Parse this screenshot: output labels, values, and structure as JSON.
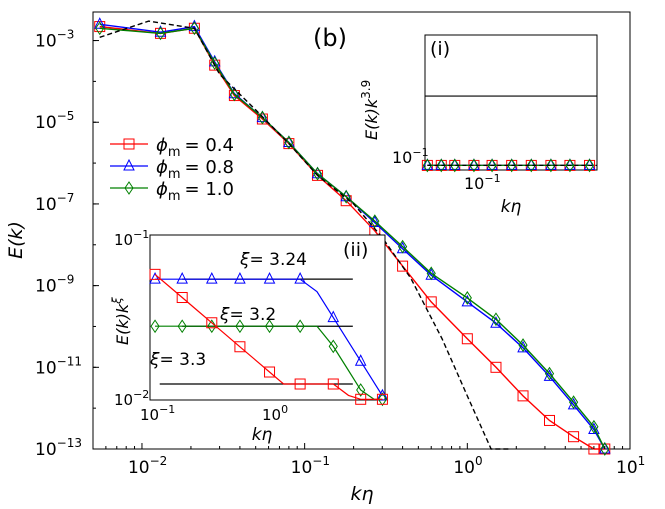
{
  "colors": {
    "phi04": "#ff0000",
    "phi08": "#0000ff",
    "phi10": "#008000",
    "reference": "#000000"
  },
  "chart_data": {
    "type": "line",
    "scale": "log-log",
    "panel_label": "(b)",
    "xlabel": "kη",
    "ylabel": "E(k)",
    "xlim": [
      0.005,
      10
    ],
    "ylim": [
      1e-13,
      0.005
    ],
    "x_ticks": [
      {
        "value": 0.01,
        "base": "10",
        "exp": "−2"
      },
      {
        "value": 0.1,
        "base": "10",
        "exp": "−1"
      },
      {
        "value": 1,
        "base": "10",
        "exp": "0"
      },
      {
        "value": 10,
        "base": "10",
        "exp": "1"
      }
    ],
    "y_ticks": [
      {
        "value": 0.001,
        "base": "10",
        "exp": "−3"
      },
      {
        "value": 1e-05,
        "base": "10",
        "exp": "−5"
      },
      {
        "value": 1e-07,
        "base": "10",
        "exp": "−7"
      },
      {
        "value": 1e-09,
        "base": "10",
        "exp": "−9"
      },
      {
        "value": 1e-11,
        "base": "10",
        "exp": "−11"
      },
      {
        "value": 1e-13,
        "base": "10",
        "exp": "−13"
      }
    ],
    "legend": [
      {
        "label": "ϕm = 0.4",
        "symbol": "ϕ",
        "sub": "m",
        "value": "= 0.4",
        "color": "#ff0000",
        "marker": "square"
      },
      {
        "label": "ϕm = 0.8",
        "symbol": "ϕ",
        "sub": "m",
        "value": "= 0.8",
        "color": "#0000ff",
        "marker": "triangle"
      },
      {
        "label": "ϕm = 1.0",
        "symbol": "ϕ",
        "sub": "m",
        "value": "= 1.0",
        "color": "#008000",
        "marker": "diamond"
      }
    ],
    "legend_position": "middle-left",
    "series": [
      {
        "name": "ϕm = 0.4",
        "color": "#ff0000",
        "marker": "square",
        "x": [
          0.0055,
          0.013,
          0.021,
          0.028,
          0.037,
          0.055,
          0.08,
          0.12,
          0.18,
          0.27,
          0.4,
          0.6,
          1.0,
          1.5,
          2.2,
          3.2,
          4.5,
          6.0,
          7.0
        ],
        "y": [
          0.0022,
          0.0015,
          0.002,
          0.00025,
          4.5e-05,
          1.2e-05,
          3e-06,
          5e-07,
          1.2e-07,
          2.2e-08,
          3e-09,
          4e-10,
          5e-11,
          1e-11,
          2e-12,
          5e-13,
          2e-13,
          1e-13,
          1e-13
        ]
      },
      {
        "name": "ϕm = 0.8",
        "color": "#0000ff",
        "marker": "triangle",
        "x": [
          0.0055,
          0.013,
          0.021,
          0.028,
          0.037,
          0.055,
          0.08,
          0.12,
          0.18,
          0.27,
          0.4,
          0.6,
          1.0,
          1.5,
          2.2,
          3.2,
          4.5,
          6.0,
          7.0
        ],
        "y": [
          0.0025,
          0.0016,
          0.0022,
          0.0003,
          5e-05,
          1.3e-05,
          3.2e-06,
          5.5e-07,
          1.5e-07,
          3.5e-08,
          8e-09,
          1.8e-09,
          4e-10,
          1.2e-10,
          3e-11,
          6e-12,
          1.2e-12,
          3e-13,
          1e-13
        ]
      },
      {
        "name": "ϕm = 1.0",
        "color": "#008000",
        "marker": "diamond",
        "x": [
          0.0055,
          0.013,
          0.021,
          0.028,
          0.037,
          0.055,
          0.08,
          0.12,
          0.18,
          0.27,
          0.4,
          0.6,
          1.0,
          1.5,
          2.2,
          3.2,
          4.5,
          6.0,
          7.0
        ],
        "y": [
          0.002,
          0.0015,
          0.002,
          0.00028,
          4.8e-05,
          1.3e-05,
          3.2e-06,
          5.5e-07,
          1.5e-07,
          3.8e-08,
          9e-09,
          2e-09,
          5e-10,
          1.5e-10,
          3.5e-11,
          7e-12,
          1.4e-12,
          3.5e-13,
          1e-13
        ]
      },
      {
        "name": "reference",
        "color": "#000000",
        "style": "dashed",
        "x": [
          0.0055,
          0.011,
          0.021,
          0.03,
          0.05,
          0.08,
          0.12,
          0.2,
          0.3,
          0.45,
          0.7,
          1.0,
          1.4,
          1.8
        ],
        "y": [
          0.0012,
          0.003,
          0.002,
          0.00015,
          2e-05,
          3e-06,
          5e-07,
          1e-07,
          1.5e-08,
          1.5e-09,
          5e-11,
          2e-12,
          1e-13,
          1e-13
        ]
      }
    ],
    "insets": [
      {
        "label": "(i)",
        "xlabel": "kη",
        "ylabel": "E(k)k",
        "ylabel_exp": "3.9",
        "x_ticks": [
          {
            "value": 0.1,
            "base": "10",
            "exp": "−1"
          }
        ],
        "y_ticks": [
          {
            "value": 0.1,
            "base": "10",
            "exp": "−1"
          }
        ],
        "xlim": [
          0.02,
          0.7
        ],
        "ylim": [
          0.06,
          1.0
        ]
      },
      {
        "label": "(ii)",
        "xlabel": "kη",
        "ylabel": "E(k)k",
        "ylabel_exp": "ξ",
        "x_ticks": [
          {
            "value": 0.1,
            "base": "10",
            "exp": "−1"
          },
          {
            "value": 1,
            "base": "10",
            "exp": "0"
          }
        ],
        "y_ticks": [
          {
            "value": 0.1,
            "base": "10",
            "exp": "−1"
          },
          {
            "value": 0.01,
            "base": "10",
            "exp": "−2"
          }
        ],
        "annotations": [
          {
            "text": "ξ = 3.24",
            "sym": "ξ",
            "val": "= 3.24"
          },
          {
            "text": "ξ = 3.2",
            "sym": "ξ",
            "val": "= 3.2"
          },
          {
            "text": "ξ = 3.3",
            "sym": "ξ",
            "val": "= 3.3"
          }
        ]
      }
    ]
  }
}
